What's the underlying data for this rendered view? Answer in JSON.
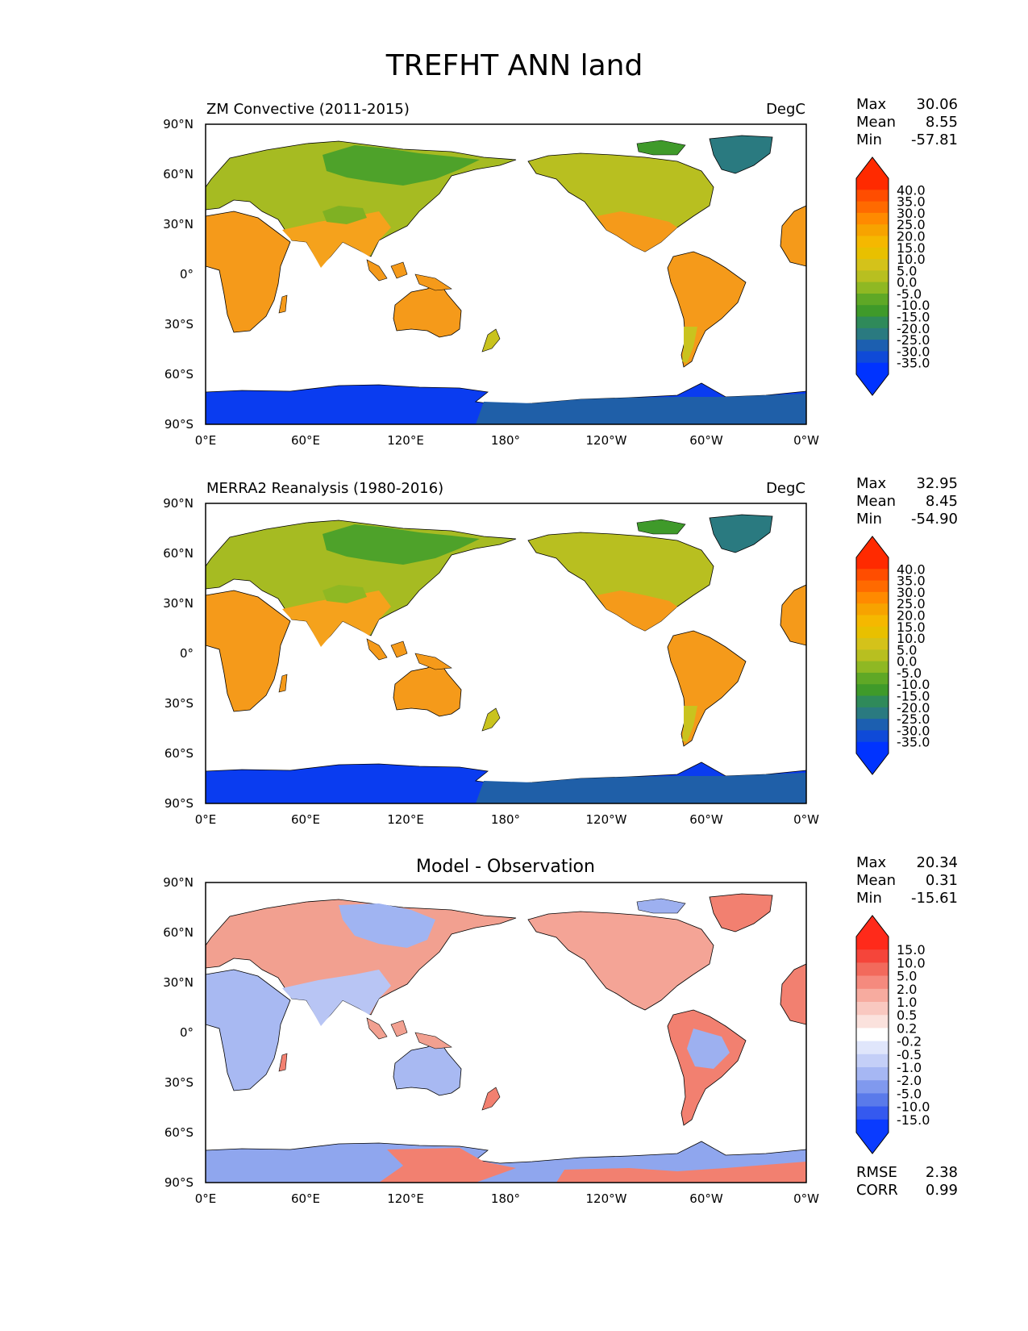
{
  "title": "TREFHT ANN land",
  "lon_ticks": [
    "0°E",
    "60°E",
    "120°E",
    "180°",
    "120°W",
    "60°W",
    "0°W"
  ],
  "lat_ticks": [
    "90°N",
    "60°N",
    "30°N",
    "0°",
    "30°S",
    "60°S",
    "90°S"
  ],
  "panels": [
    {
      "id": "model",
      "title_left": "ZM Convective (2011-2015)",
      "title_center": "",
      "units": "DegC",
      "stats": [
        {
          "label": "Max",
          "value": "30.06"
        },
        {
          "label": "Mean",
          "value": "8.55"
        },
        {
          "label": "Min",
          "value": "-57.81"
        }
      ],
      "colorbar": {
        "levels": [
          "40.0",
          "35.0",
          "30.0",
          "25.0",
          "20.0",
          "15.0",
          "10.0",
          "5.0",
          "0.0",
          "-5.0",
          "-10.0",
          "-15.0",
          "-20.0",
          "-25.0",
          "-30.0",
          "-35.0"
        ],
        "colors": [
          "#ff2a00",
          "#ff4d00",
          "#ff6a00",
          "#ff8a00",
          "#f7a300",
          "#f5b800",
          "#e8c000",
          "#d4c21a",
          "#b8bf20",
          "#8fb823",
          "#5fa826",
          "#3f9a2a",
          "#2f8a5a",
          "#2a7a80",
          "#1c5fb0",
          "#0f4ad8",
          "#0033ff"
        ],
        "extend_max_color": "#ff2a00",
        "extend_min_color": "#0033ff"
      },
      "metrics": []
    },
    {
      "id": "obs",
      "title_left": "MERRA2 Reanalysis (1980-2016)",
      "title_center": "",
      "units": "DegC",
      "stats": [
        {
          "label": "Max",
          "value": "32.95"
        },
        {
          "label": "Mean",
          "value": "8.45"
        },
        {
          "label": "Min",
          "value": "-54.90"
        }
      ],
      "colorbar": {
        "levels": [
          "40.0",
          "35.0",
          "30.0",
          "25.0",
          "20.0",
          "15.0",
          "10.0",
          "5.0",
          "0.0",
          "-5.0",
          "-10.0",
          "-15.0",
          "-20.0",
          "-25.0",
          "-30.0",
          "-35.0"
        ],
        "colors": [
          "#ff2a00",
          "#ff4d00",
          "#ff6a00",
          "#ff8a00",
          "#f7a300",
          "#f5b800",
          "#e8c000",
          "#d4c21a",
          "#b8bf20",
          "#8fb823",
          "#5fa826",
          "#3f9a2a",
          "#2f8a5a",
          "#2a7a80",
          "#1c5fb0",
          "#0f4ad8",
          "#0033ff"
        ],
        "extend_max_color": "#ff2a00",
        "extend_min_color": "#0033ff"
      },
      "metrics": []
    },
    {
      "id": "diff",
      "title_left": "",
      "title_center": "Model - Observation",
      "units": "",
      "stats": [
        {
          "label": "Max",
          "value": "20.34"
        },
        {
          "label": "Mean",
          "value": "0.31"
        },
        {
          "label": "Min",
          "value": "-15.61"
        }
      ],
      "colorbar": {
        "levels": [
          "15.0",
          "10.0",
          "5.0",
          "2.0",
          "1.0",
          "0.5",
          "0.2",
          "-0.2",
          "-0.5",
          "-1.0",
          "-2.0",
          "-5.0",
          "-10.0",
          "-15.0"
        ],
        "colors": [
          "#ff2a1a",
          "#f5453a",
          "#f26a5c",
          "#f58a7e",
          "#f7ab9f",
          "#f9c8c0",
          "#fbe2dd",
          "#ffffff",
          "#e0e6fb",
          "#c4cff7",
          "#a6b7f3",
          "#8099ee",
          "#5a7aea",
          "#3559ef",
          "#0a3bff"
        ],
        "extend_max_color": "#ff2a1a",
        "extend_min_color": "#0a3bff"
      },
      "metrics": [
        {
          "label": "RMSE",
          "value": "2.38"
        },
        {
          "label": "CORR",
          "value": "0.99"
        }
      ]
    }
  ],
  "colors": {
    "land_model_warm": "#f59a1a",
    "land_model_mid": "#c9c31e",
    "land_model_cold": "#3f9a2a",
    "antarctica": "#0a3cf0",
    "greenland": "#2a7a80",
    "diff_pos": "#f28070",
    "diff_neg": "#90a8f0",
    "coast": "#000000"
  }
}
